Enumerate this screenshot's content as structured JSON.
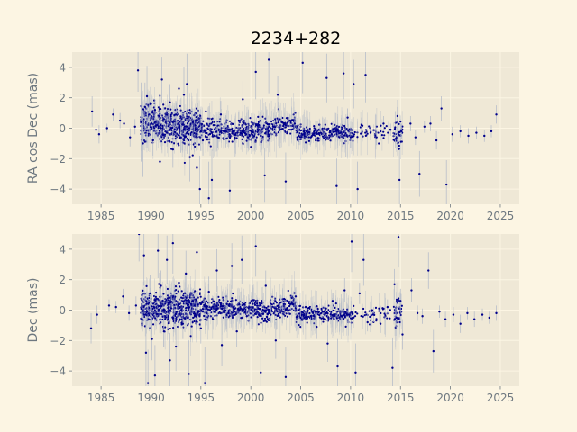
{
  "chart_data": [
    {
      "type": "scatter",
      "title": "2234+282",
      "xlabel": "",
      "ylabel": "RA cos Dec (mas)",
      "xlim": [
        1982.1,
        2026.9
      ],
      "ylim": [
        -5,
        5
      ],
      "xticks": [
        "1985",
        "1990",
        "1995",
        "2000",
        "2005",
        "2010",
        "2015",
        "2020",
        "2025"
      ],
      "yticks": [
        "−4",
        "−2",
        "0",
        "2",
        "4"
      ],
      "grid": true,
      "marker_color": "#00008b",
      "errorbar_color": "#b0b8c8",
      "points": [
        {
          "x": 1984.1,
          "y": 1.1,
          "err": 1.0
        },
        {
          "x": 1984.5,
          "y": -0.1,
          "err": 0.5
        },
        {
          "x": 1984.8,
          "y": -0.4,
          "err": 0.6
        },
        {
          "x": 1985.6,
          "y": 0.0,
          "err": 0.3
        },
        {
          "x": 1986.2,
          "y": 0.9,
          "err": 0.4
        },
        {
          "x": 1986.9,
          "y": 0.5,
          "err": 0.5
        },
        {
          "x": 1987.3,
          "y": 0.3,
          "err": 0.4
        },
        {
          "x": 1987.9,
          "y": -0.6,
          "err": 0.6
        },
        {
          "x": 1988.4,
          "y": 0.1,
          "err": 0.5
        },
        {
          "x": 1988.7,
          "y": 3.8,
          "err": 1.4
        },
        {
          "x": 1989.0,
          "y": 0.4,
          "err": 2.6
        },
        {
          "x": 1989.2,
          "y": -1.0,
          "err": 2.2
        },
        {
          "x": 1989.4,
          "y": 1.4,
          "err": 1.6
        },
        {
          "x": 1989.6,
          "y": 2.1,
          "err": 2.0
        },
        {
          "x": 1989.8,
          "y": 0.9,
          "err": 1.1
        },
        {
          "x": 1990.0,
          "y": 1.6,
          "err": 0.9
        },
        {
          "x": 1990.2,
          "y": -0.8,
          "err": 1.0
        },
        {
          "x": 1990.4,
          "y": 1.2,
          "err": 0.7
        },
        {
          "x": 1990.6,
          "y": 0.2,
          "err": 0.8
        },
        {
          "x": 1990.9,
          "y": -2.2,
          "err": 1.4
        },
        {
          "x": 1991.1,
          "y": 3.2,
          "err": 1.5
        },
        {
          "x": 1991.3,
          "y": 0.6,
          "err": 0.8
        },
        {
          "x": 1991.6,
          "y": -0.3,
          "err": 0.9
        },
        {
          "x": 1991.9,
          "y": 1.7,
          "err": 1.2
        },
        {
          "x": 1992.2,
          "y": -1.4,
          "err": 1.2
        },
        {
          "x": 1992.5,
          "y": 0.9,
          "err": 0.8
        },
        {
          "x": 1992.8,
          "y": 2.6,
          "err": 1.6
        },
        {
          "x": 1993.0,
          "y": -0.6,
          "err": 1.0
        },
        {
          "x": 1993.3,
          "y": 2.2,
          "err": 1.8
        },
        {
          "x": 1993.6,
          "y": 2.9,
          "err": 2.0
        },
        {
          "x": 1993.9,
          "y": -1.9,
          "err": 1.6
        },
        {
          "x": 1994.2,
          "y": 0.4,
          "err": 0.9
        },
        {
          "x": 1994.6,
          "y": -2.6,
          "err": 1.8
        },
        {
          "x": 1994.9,
          "y": -4.0,
          "err": 2.2
        },
        {
          "x": 1995.2,
          "y": -0.8,
          "err": 1.0
        },
        {
          "x": 1995.5,
          "y": 1.1,
          "err": 1.2
        },
        {
          "x": 1995.8,
          "y": -4.6,
          "err": 2.4
        },
        {
          "x": 1996.1,
          "y": -3.4,
          "err": 2.0
        },
        {
          "x": 1996.4,
          "y": 0.2,
          "err": 0.6
        },
        {
          "x": 1996.7,
          "y": -0.6,
          "err": 0.7
        },
        {
          "x": 1997.0,
          "y": 0.9,
          "err": 0.9
        },
        {
          "x": 1997.4,
          "y": -0.2,
          "err": 0.5
        },
        {
          "x": 1997.9,
          "y": -4.1,
          "err": 2.0
        },
        {
          "x": 1998.3,
          "y": -0.4,
          "err": 0.6
        },
        {
          "x": 1998.8,
          "y": 0.5,
          "err": 0.6
        },
        {
          "x": 1999.2,
          "y": 1.9,
          "err": 1.2
        },
        {
          "x": 1999.7,
          "y": -0.6,
          "err": 0.7
        },
        {
          "x": 2000.1,
          "y": -0.2,
          "err": 0.5
        },
        {
          "x": 2000.5,
          "y": 3.7,
          "err": 1.8
        },
        {
          "x": 2001.0,
          "y": -0.5,
          "err": 0.6
        },
        {
          "x": 2001.4,
          "y": -3.1,
          "err": 1.8
        },
        {
          "x": 2001.8,
          "y": 4.5,
          "err": 2.2
        },
        {
          "x": 2002.3,
          "y": 0.1,
          "err": 0.4
        },
        {
          "x": 2002.7,
          "y": 2.2,
          "err": 1.2
        },
        {
          "x": 2003.1,
          "y": 0.4,
          "err": 0.4
        },
        {
          "x": 2003.5,
          "y": -3.5,
          "err": 1.9
        },
        {
          "x": 2003.9,
          "y": 0.5,
          "err": 0.4
        },
        {
          "x": 2004.4,
          "y": 0.3,
          "err": 0.4
        },
        {
          "x": 2004.8,
          "y": -0.5,
          "err": 0.6
        },
        {
          "x": 2005.2,
          "y": 4.3,
          "err": 2.0
        },
        {
          "x": 2005.6,
          "y": -0.2,
          "err": 0.5
        },
        {
          "x": 2006.0,
          "y": -0.6,
          "err": 0.5
        },
        {
          "x": 2006.5,
          "y": -0.8,
          "err": 0.6
        },
        {
          "x": 2007.0,
          "y": -0.3,
          "err": 0.5
        },
        {
          "x": 2007.6,
          "y": 3.3,
          "err": 1.6
        },
        {
          "x": 2008.1,
          "y": -0.4,
          "err": 0.5
        },
        {
          "x": 2008.6,
          "y": -3.8,
          "err": 1.8
        },
        {
          "x": 2009.0,
          "y": -0.3,
          "err": 0.6
        },
        {
          "x": 2009.3,
          "y": 3.6,
          "err": 1.7
        },
        {
          "x": 2009.7,
          "y": 0.7,
          "err": 0.6
        },
        {
          "x": 2010.0,
          "y": -0.6,
          "err": 0.7
        },
        {
          "x": 2010.3,
          "y": 2.9,
          "err": 1.6
        },
        {
          "x": 2010.7,
          "y": -4.0,
          "err": 1.8
        },
        {
          "x": 2011.1,
          "y": 0.2,
          "err": 0.5
        },
        {
          "x": 2011.5,
          "y": 3.5,
          "err": 1.8
        },
        {
          "x": 2012.0,
          "y": -0.3,
          "err": 0.5
        },
        {
          "x": 2012.6,
          "y": -0.6,
          "err": 0.5
        },
        {
          "x": 2013.3,
          "y": 0.3,
          "err": 0.5
        },
        {
          "x": 2014.0,
          "y": -0.1,
          "err": 0.4
        },
        {
          "x": 2014.5,
          "y": -0.7,
          "err": 0.6
        },
        {
          "x": 2014.7,
          "y": 0.8,
          "err": 0.6
        },
        {
          "x": 2014.9,
          "y": -3.4,
          "err": 2.0
        },
        {
          "x": 2015.1,
          "y": -0.2,
          "err": 0.5
        },
        {
          "x": 2016.0,
          "y": 0.3,
          "err": 0.5
        },
        {
          "x": 2016.5,
          "y": -0.6,
          "err": 0.5
        },
        {
          "x": 2016.9,
          "y": -3.0,
          "err": 1.5
        },
        {
          "x": 2017.4,
          "y": 0.1,
          "err": 0.4
        },
        {
          "x": 2018.0,
          "y": 0.3,
          "err": 0.5
        },
        {
          "x": 2018.6,
          "y": -0.8,
          "err": 0.6
        },
        {
          "x": 2019.1,
          "y": 1.3,
          "err": 0.8
        },
        {
          "x": 2019.6,
          "y": -3.7,
          "err": 1.6
        },
        {
          "x": 2020.2,
          "y": -0.4,
          "err": 0.5
        },
        {
          "x": 2021.0,
          "y": -0.2,
          "err": 0.4
        },
        {
          "x": 2021.8,
          "y": -0.5,
          "err": 0.5
        },
        {
          "x": 2022.6,
          "y": -0.3,
          "err": 0.4
        },
        {
          "x": 2023.4,
          "y": -0.5,
          "err": 0.4
        },
        {
          "x": 2024.1,
          "y": -0.2,
          "err": 0.4
        },
        {
          "x": 2024.6,
          "y": 0.9,
          "err": 0.6
        }
      ]
    },
    {
      "type": "scatter",
      "title": "",
      "xlabel": "",
      "ylabel": "Dec (mas)",
      "xlim": [
        1982.1,
        2026.9
      ],
      "ylim": [
        -5,
        5
      ],
      "xticks": [
        "1985",
        "1990",
        "1995",
        "2000",
        "2005",
        "2010",
        "2015",
        "2020",
        "2025"
      ],
      "yticks": [
        "−4",
        "−2",
        "0",
        "2",
        "4"
      ],
      "grid": true,
      "marker_color": "#00008b",
      "errorbar_color": "#b0b8c8",
      "points": [
        {
          "x": 1984.0,
          "y": -1.2,
          "err": 1.0
        },
        {
          "x": 1984.6,
          "y": -0.3,
          "err": 0.6
        },
        {
          "x": 1985.8,
          "y": 0.3,
          "err": 0.4
        },
        {
          "x": 1986.5,
          "y": 0.2,
          "err": 0.4
        },
        {
          "x": 1987.2,
          "y": 0.9,
          "err": 0.5
        },
        {
          "x": 1987.8,
          "y": -0.2,
          "err": 0.5
        },
        {
          "x": 1988.5,
          "y": 0.3,
          "err": 0.6
        },
        {
          "x": 1988.8,
          "y": 5.0,
          "err": 1.8
        },
        {
          "x": 1989.1,
          "y": -0.6,
          "err": 2.2
        },
        {
          "x": 1989.3,
          "y": 3.6,
          "err": 2.0
        },
        {
          "x": 1989.5,
          "y": -2.8,
          "err": 2.4
        },
        {
          "x": 1989.7,
          "y": -4.8,
          "err": 2.2
        },
        {
          "x": 1989.9,
          "y": 1.1,
          "err": 1.2
        },
        {
          "x": 1990.1,
          "y": -1.9,
          "err": 1.4
        },
        {
          "x": 1990.4,
          "y": -4.3,
          "err": 2.0
        },
        {
          "x": 1990.7,
          "y": 3.9,
          "err": 1.8
        },
        {
          "x": 1991.0,
          "y": 1.6,
          "err": 1.0
        },
        {
          "x": 1991.3,
          "y": -1.4,
          "err": 1.0
        },
        {
          "x": 1991.6,
          "y": 3.3,
          "err": 1.6
        },
        {
          "x": 1991.9,
          "y": -3.3,
          "err": 1.8
        },
        {
          "x": 1992.2,
          "y": 4.4,
          "err": 2.0
        },
        {
          "x": 1992.5,
          "y": -2.4,
          "err": 1.6
        },
        {
          "x": 1992.8,
          "y": 1.8,
          "err": 1.2
        },
        {
          "x": 1993.2,
          "y": -0.9,
          "err": 1.0
        },
        {
          "x": 1993.5,
          "y": 2.4,
          "err": 1.5
        },
        {
          "x": 1993.8,
          "y": -4.2,
          "err": 2.2
        },
        {
          "x": 1994.2,
          "y": 0.6,
          "err": 0.8
        },
        {
          "x": 1994.6,
          "y": 3.8,
          "err": 1.8
        },
        {
          "x": 1995.0,
          "y": -1.2,
          "err": 1.0
        },
        {
          "x": 1995.4,
          "y": -4.8,
          "err": 2.4
        },
        {
          "x": 1995.8,
          "y": 1.2,
          "err": 1.0
        },
        {
          "x": 1996.2,
          "y": -0.6,
          "err": 0.7
        },
        {
          "x": 1996.6,
          "y": 2.6,
          "err": 1.4
        },
        {
          "x": 1997.1,
          "y": -2.3,
          "err": 1.4
        },
        {
          "x": 1997.6,
          "y": 0.4,
          "err": 0.6
        },
        {
          "x": 1998.1,
          "y": 2.9,
          "err": 1.5
        },
        {
          "x": 1998.6,
          "y": -1.4,
          "err": 1.0
        },
        {
          "x": 1999.1,
          "y": 3.3,
          "err": 1.6
        },
        {
          "x": 1999.6,
          "y": -0.4,
          "err": 0.6
        },
        {
          "x": 2000.1,
          "y": 0.2,
          "err": 0.5
        },
        {
          "x": 2000.5,
          "y": 4.2,
          "err": 2.0
        },
        {
          "x": 2001.0,
          "y": -4.1,
          "err": 2.0
        },
        {
          "x": 2001.5,
          "y": 1.6,
          "err": 1.0
        },
        {
          "x": 2002.0,
          "y": -0.3,
          "err": 0.5
        },
        {
          "x": 2002.5,
          "y": -2.0,
          "err": 1.2
        },
        {
          "x": 2003.0,
          "y": 0.5,
          "err": 0.5
        },
        {
          "x": 2003.5,
          "y": -4.4,
          "err": 2.0
        },
        {
          "x": 2004.0,
          "y": 0.4,
          "err": 0.4
        },
        {
          "x": 2004.5,
          "y": 0.9,
          "err": 0.6
        },
        {
          "x": 2005.0,
          "y": -0.5,
          "err": 0.5
        },
        {
          "x": 2005.5,
          "y": 0.2,
          "err": 0.4
        },
        {
          "x": 2006.0,
          "y": -0.4,
          "err": 0.5
        },
        {
          "x": 2006.6,
          "y": -1.1,
          "err": 0.8
        },
        {
          "x": 2007.2,
          "y": -0.1,
          "err": 0.4
        },
        {
          "x": 2007.7,
          "y": -2.2,
          "err": 1.2
        },
        {
          "x": 2008.2,
          "y": 0.6,
          "err": 0.5
        },
        {
          "x": 2008.7,
          "y": -3.7,
          "err": 1.8
        },
        {
          "x": 2009.1,
          "y": -0.4,
          "err": 0.5
        },
        {
          "x": 2009.4,
          "y": 1.3,
          "err": 0.8
        },
        {
          "x": 2009.8,
          "y": -0.3,
          "err": 0.6
        },
        {
          "x": 2010.1,
          "y": 4.5,
          "err": 2.0
        },
        {
          "x": 2010.5,
          "y": -4.1,
          "err": 1.9
        },
        {
          "x": 2010.9,
          "y": 1.1,
          "err": 0.7
        },
        {
          "x": 2011.3,
          "y": 3.3,
          "err": 1.7
        },
        {
          "x": 2011.7,
          "y": -0.8,
          "err": 0.6
        },
        {
          "x": 2012.3,
          "y": -0.3,
          "err": 0.5
        },
        {
          "x": 2013.0,
          "y": -0.9,
          "err": 0.6
        },
        {
          "x": 2013.7,
          "y": 0.2,
          "err": 0.5
        },
        {
          "x": 2014.2,
          "y": -3.8,
          "err": 2.0
        },
        {
          "x": 2014.4,
          "y": 1.7,
          "err": 1.0
        },
        {
          "x": 2014.6,
          "y": -0.5,
          "err": 0.7
        },
        {
          "x": 2014.8,
          "y": 4.8,
          "err": 2.0
        },
        {
          "x": 2015.0,
          "y": 0.6,
          "err": 0.8
        },
        {
          "x": 2015.2,
          "y": -1.6,
          "err": 1.0
        },
        {
          "x": 2016.1,
          "y": 1.3,
          "err": 0.8
        },
        {
          "x": 2016.7,
          "y": -0.2,
          "err": 0.5
        },
        {
          "x": 2017.2,
          "y": -0.4,
          "err": 0.5
        },
        {
          "x": 2017.8,
          "y": 2.6,
          "err": 1.2
        },
        {
          "x": 2018.3,
          "y": -2.7,
          "err": 1.4
        },
        {
          "x": 2018.9,
          "y": -0.1,
          "err": 0.4
        },
        {
          "x": 2019.5,
          "y": -0.6,
          "err": 0.5
        },
        {
          "x": 2020.3,
          "y": -0.3,
          "err": 0.5
        },
        {
          "x": 2021.0,
          "y": -0.9,
          "err": 0.6
        },
        {
          "x": 2021.7,
          "y": -0.2,
          "err": 0.4
        },
        {
          "x": 2022.4,
          "y": -0.6,
          "err": 0.5
        },
        {
          "x": 2023.2,
          "y": -0.3,
          "err": 0.4
        },
        {
          "x": 2023.9,
          "y": -0.5,
          "err": 0.4
        },
        {
          "x": 2024.6,
          "y": -0.2,
          "err": 0.5
        }
      ]
    }
  ]
}
